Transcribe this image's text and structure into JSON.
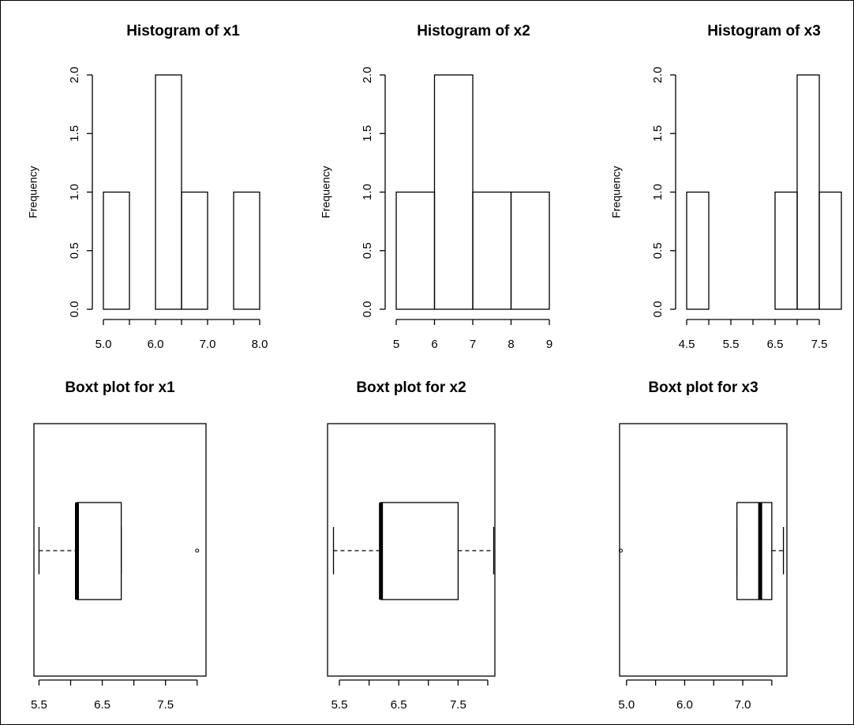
{
  "chart_data": [
    {
      "type": "histogram",
      "title": "Histogram of x1",
      "ylabel": "Frequency",
      "bins": [
        5.0,
        5.5,
        6.0,
        6.5,
        7.0,
        7.5,
        8.0
      ],
      "values": [
        1,
        0,
        2,
        1,
        0,
        1
      ],
      "xlim": [
        5.0,
        8.0
      ],
      "xticks": [
        {
          "value": 5.0,
          "label": "5.0"
        },
        {
          "value": 5.5,
          "label": null
        },
        {
          "value": 6.0,
          "label": "6.0"
        },
        {
          "value": 6.5,
          "label": null
        },
        {
          "value": 7.0,
          "label": "7.0"
        },
        {
          "value": 7.5,
          "label": null
        },
        {
          "value": 8.0,
          "label": "8.0"
        }
      ],
      "ylim": [
        0,
        2
      ],
      "yticks": [
        {
          "value": 0,
          "label": "0.0"
        },
        {
          "value": 0.5,
          "label": "0.5"
        },
        {
          "value": 1,
          "label": "1.0"
        },
        {
          "value": 1.5,
          "label": "1.5"
        },
        {
          "value": 2,
          "label": "2.0"
        }
      ]
    },
    {
      "type": "histogram",
      "title": "Histogram of x2",
      "ylabel": "Frequency",
      "bins": [
        5,
        6,
        7,
        8,
        9
      ],
      "values": [
        1,
        2,
        1,
        1
      ],
      "xlim": [
        5,
        9
      ],
      "xticks": [
        5,
        6,
        7,
        8,
        9
      ],
      "ylim": [
        0,
        2
      ],
      "yticks": [
        {
          "value": 0,
          "label": "0.0"
        },
        {
          "value": 0.5,
          "label": "0.5"
        },
        {
          "value": 1,
          "label": "1.0"
        },
        {
          "value": 1.5,
          "label": "1.5"
        },
        {
          "value": 2,
          "label": "2.0"
        }
      ]
    },
    {
      "type": "histogram",
      "title": "Histogram of x3",
      "ylabel": "Frequency",
      "bins": [
        4.5,
        5.0,
        5.5,
        6.0,
        6.5,
        7.0,
        7.5,
        8.0
      ],
      "values": [
        1,
        0,
        0,
        0,
        1,
        2,
        1
      ],
      "xlim": [
        4.5,
        8.0
      ],
      "xticks": [
        4.5,
        {
          "value": 5.0,
          "label": null
        },
        5.5,
        {
          "value": 6.0,
          "label": null
        },
        6.5,
        {
          "value": 7.0,
          "label": null
        },
        7.5
      ],
      "ylim": [
        0,
        2
      ],
      "yticks": [
        {
          "value": 0,
          "label": "0.0"
        },
        {
          "value": 0.5,
          "label": "0.5"
        },
        {
          "value": 1,
          "label": "1.0"
        },
        {
          "value": 1.5,
          "label": "1.5"
        },
        {
          "value": 2,
          "label": "2.0"
        }
      ]
    },
    {
      "type": "boxplot",
      "title": "Boxt plot for x1",
      "whisker_low": 5.5,
      "q1": 6.1,
      "median": 6.1,
      "q3": 6.8,
      "whisker_high": 6.8,
      "outliers": [
        8.0
      ],
      "xlim": [
        5.42,
        8.14
      ],
      "xticks": [
        5.5,
        {
          "value": 6.0,
          "label": null
        },
        6.5,
        {
          "value": 7.0,
          "label": null
        },
        7.5,
        {
          "value": 8.0,
          "label": null
        }
      ]
    },
    {
      "type": "boxplot",
      "title": "Boxt plot for x2",
      "whisker_low": 5.4,
      "q1": 6.2,
      "median": 6.2,
      "q3": 7.5,
      "whisker_high": 8.1,
      "outliers": [],
      "xlim": [
        5.3,
        8.12
      ],
      "xticks": [
        5.5,
        {
          "value": 6.0,
          "label": null
        },
        6.5,
        {
          "value": 7.0,
          "label": null
        },
        7.5,
        {
          "value": 8.0,
          "label": null
        }
      ]
    },
    {
      "type": "boxplot",
      "title": "Boxt plot for x3",
      "whisker_low": 6.9,
      "q1": 6.9,
      "median": 7.3,
      "q3": 7.5,
      "whisker_high": 7.7,
      "outliers": [
        4.9
      ],
      "xlim": [
        4.88,
        7.76
      ],
      "xticks": [
        {
          "value": 5.0,
          "label": "5.0"
        },
        {
          "value": 5.5,
          "label": null
        },
        {
          "value": 6.0,
          "label": "6.0"
        },
        {
          "value": 6.5,
          "label": null
        },
        {
          "value": 7.0,
          "label": "7.0"
        },
        {
          "value": 7.5,
          "label": null
        }
      ]
    }
  ]
}
